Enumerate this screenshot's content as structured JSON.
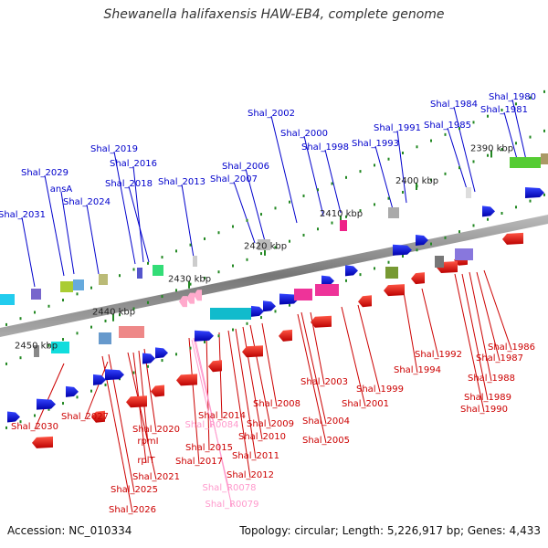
{
  "title": "Shewanella halifaxensis HAW-EB4, complete genome",
  "footer": {
    "accession": "Accession: NC_010334",
    "topology": "Topology: circular; Length: 5,226,917 bp; Genes: 4,433"
  },
  "colors": {
    "forward_label": "#0000cc",
    "reverse_label": "#cc0000",
    "rna_label": "#ff99cc",
    "backbone": "#888888",
    "tick": "#228822"
  },
  "scale_labels": [
    "2390 kbp",
    "2400 kbp",
    "2410 kbp",
    "2420 kbp",
    "2430 kbp",
    "2440 kbp",
    "2450 kbp"
  ],
  "forward_genes": [
    "Shal_1980",
    "Shal_1981",
    "Shal_1984",
    "Shal_1985",
    "Shal_1991",
    "Shal_1993",
    "Shal_2000",
    "Shal_1998",
    "Shal_2002",
    "Shal_2006",
    "Shal_2007",
    "Shal_2013",
    "Shal_2019",
    "Shal_2016",
    "Shal_2018",
    "Shal_2024",
    "ansA",
    "Shal_2029",
    "Shal_2031"
  ],
  "reverse_genes": [
    "Shal_1986",
    "Shal_1987",
    "Shal_1988",
    "Shal_1989",
    "Shal_1990",
    "Shal_1992",
    "Shal_1994",
    "Shal_1999",
    "Shal_2001",
    "Shal_2003",
    "Shal_2004",
    "Shal_2005",
    "Shal_2008",
    "Shal_2009",
    "Shal_2010",
    "Shal_2011",
    "Shal_2012",
    "Shal_2014",
    "Shal_2015",
    "Shal_2017",
    "Shal_2020",
    "rpmI",
    "rplT",
    "Shal_2021",
    "Shal_2025",
    "Shal_2026",
    "Shal_2027",
    "Shal_2030"
  ],
  "rna_genes": [
    "Shal_R0084",
    "Shal_R0078",
    "Shal_R0079"
  ]
}
